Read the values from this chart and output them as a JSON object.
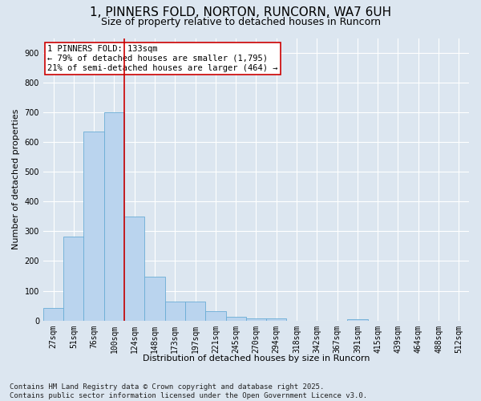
{
  "title": "1, PINNERS FOLD, NORTON, RUNCORN, WA7 6UH",
  "subtitle": "Size of property relative to detached houses in Runcorn",
  "xlabel": "Distribution of detached houses by size in Runcorn",
  "ylabel": "Number of detached properties",
  "bar_labels": [
    "27sqm",
    "51sqm",
    "76sqm",
    "100sqm",
    "124sqm",
    "148sqm",
    "173sqm",
    "197sqm",
    "221sqm",
    "245sqm",
    "270sqm",
    "294sqm",
    "318sqm",
    "342sqm",
    "367sqm",
    "391sqm",
    "415sqm",
    "439sqm",
    "464sqm",
    "488sqm",
    "512sqm"
  ],
  "bar_values": [
    42,
    282,
    635,
    700,
    350,
    147,
    65,
    65,
    30,
    13,
    8,
    8,
    0,
    0,
    0,
    5,
    0,
    0,
    0,
    0,
    0
  ],
  "bar_color": "#bad4ee",
  "bar_edge_color": "#6aadd5",
  "vline_x": 3.5,
  "vline_color": "#cc0000",
  "annotation_text": "1 PINNERS FOLD: 133sqm\n← 79% of detached houses are smaller (1,795)\n21% of semi-detached houses are larger (464) →",
  "annotation_box_color": "#ffffff",
  "annotation_box_edge": "#cc0000",
  "ylim": [
    0,
    950
  ],
  "yticks": [
    0,
    100,
    200,
    300,
    400,
    500,
    600,
    700,
    800,
    900
  ],
  "bg_color": "#dce6f0",
  "plot_bg_color": "#dce6f0",
  "footer": "Contains HM Land Registry data © Crown copyright and database right 2025.\nContains public sector information licensed under the Open Government Licence v3.0.",
  "title_fontsize": 11,
  "subtitle_fontsize": 9,
  "axis_label_fontsize": 8,
  "tick_fontsize": 7,
  "annotation_fontsize": 7.5,
  "footer_fontsize": 6.5
}
